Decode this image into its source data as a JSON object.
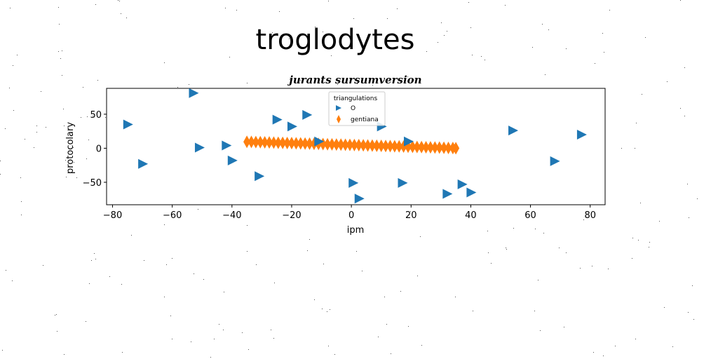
{
  "chart_data": {
    "type": "scatter",
    "suptitle": "troglodytes",
    "title": "jurants sursumversion",
    "xlabel": "ipm",
    "ylabel": "protocolary",
    "xlim": [
      -82,
      85
    ],
    "ylim": [
      -83,
      88
    ],
    "xticks": [
      -80,
      -60,
      -40,
      -20,
      0,
      20,
      40,
      60,
      80
    ],
    "yticks": [
      -50,
      0,
      50
    ],
    "grid": false,
    "legend": {
      "title": "triangulations",
      "placement": "top-center"
    },
    "series": [
      {
        "name": "O",
        "marker": "triangle-right",
        "color": "#1f77b4",
        "x": [
          -75,
          -53,
          -70,
          -51,
          -42,
          -40,
          -31,
          -25,
          -20,
          -15,
          -11,
          0.5,
          2.5,
          10,
          17,
          19,
          32,
          37,
          40,
          54,
          68,
          77
        ],
        "y": [
          35,
          81,
          -23,
          1,
          4,
          -18,
          -41,
          42,
          32,
          49,
          10,
          -51,
          -74,
          32,
          -51,
          10,
          -67,
          -53,
          -65,
          26,
          -19,
          20
        ]
      },
      {
        "name": "gentiana",
        "marker": "thin-diamond",
        "color": "#ff7f0e",
        "x": [
          -35,
          -33.5,
          -32,
          -30.5,
          -29,
          -27.5,
          -26,
          -24.5,
          -23,
          -21.5,
          -20,
          -18.5,
          -17,
          -15.5,
          -14,
          -12.5,
          -11,
          -9.5,
          -8,
          -6.5,
          -5,
          -3.5,
          -2,
          -0.5,
          1,
          2.5,
          4,
          5.5,
          7,
          8.5,
          10,
          11.5,
          13,
          14.5,
          16,
          17.5,
          19,
          20.5,
          22,
          23.5,
          25,
          26.5,
          28,
          29.5,
          31,
          32.5,
          34,
          35
        ],
        "y": [
          9.5,
          9.3,
          9.1,
          8.9,
          8.7,
          8.5,
          8.3,
          8.1,
          7.9,
          7.7,
          7.5,
          7.3,
          7.1,
          6.9,
          6.7,
          6.5,
          6.3,
          6.1,
          5.9,
          5.7,
          5.5,
          5.3,
          5.1,
          4.9,
          4.7,
          4.5,
          4.3,
          4.1,
          3.9,
          3.7,
          3.5,
          3.3,
          3.1,
          2.9,
          2.7,
          2.5,
          2.3,
          2.1,
          1.9,
          1.7,
          1.5,
          1.3,
          1.1,
          0.9,
          0.7,
          0.5,
          0.3,
          0.1
        ]
      }
    ]
  }
}
